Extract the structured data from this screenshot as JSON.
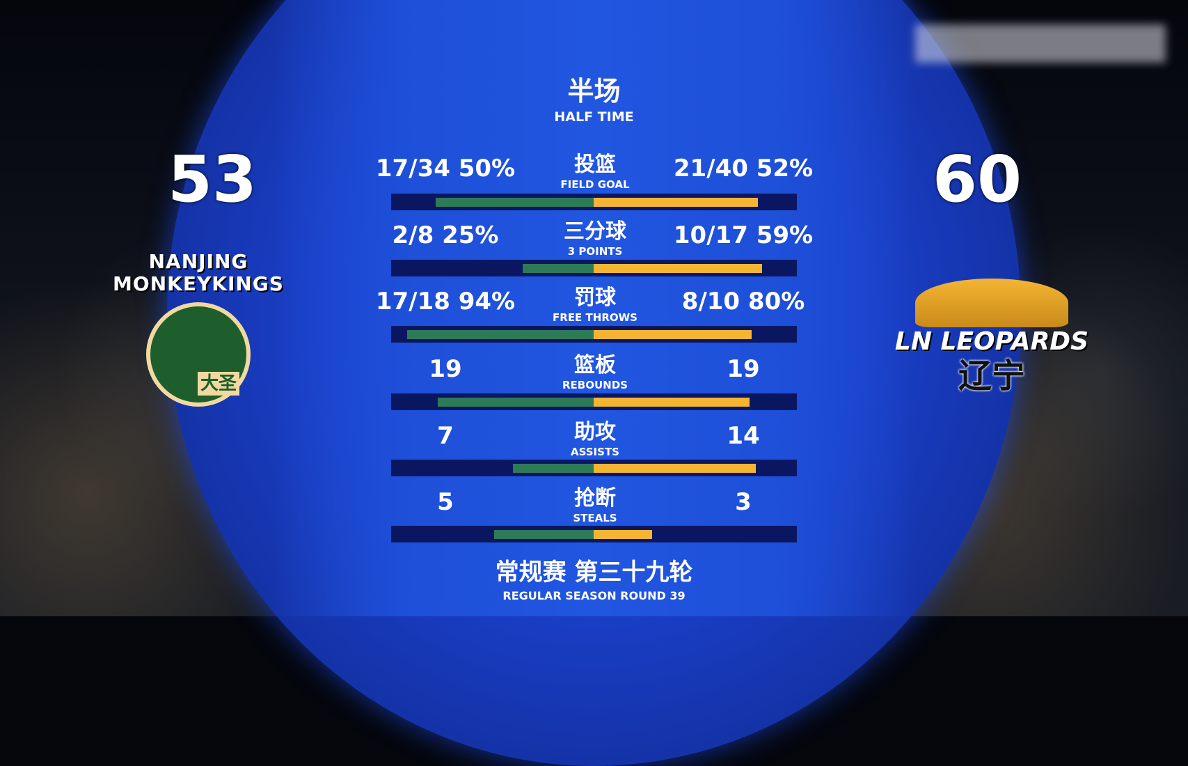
{
  "header": {
    "title_cn": "半场",
    "title_en": "HALF TIME"
  },
  "teams": {
    "home": {
      "score": "53",
      "logo_text": "NANJING MONKEYKINGS",
      "logo_sub": "大圣",
      "color": "#2d7a58"
    },
    "away": {
      "score": "60",
      "logo_text": "LN LEOPARDS",
      "logo_sub": "辽宁",
      "color": "#f4b533"
    }
  },
  "stats": [
    {
      "cn": "投篮",
      "en": "FIELD GOAL",
      "home": "17/34  50%",
      "away": "21/40  52%",
      "home_fill": 0.78,
      "away_fill": 0.81
    },
    {
      "cn": "三分球",
      "en": "3 POINTS",
      "home": "2/8  25%",
      "away": "10/17  59%",
      "home_fill": 0.35,
      "away_fill": 0.83
    },
    {
      "cn": "罚球",
      "en": "FREE THROWS",
      "home": "17/18  94%",
      "away": "8/10  80%",
      "home_fill": 0.92,
      "away_fill": 0.78
    },
    {
      "cn": "篮板",
      "en": "REBOUNDS",
      "home": "19",
      "away": "19",
      "home_fill": 0.77,
      "away_fill": 0.77
    },
    {
      "cn": "助攻",
      "en": "ASSISTS",
      "home": "7",
      "away": "14",
      "home_fill": 0.4,
      "away_fill": 0.8
    },
    {
      "cn": "抢断",
      "en": "STEALS",
      "home": "5",
      "away": "3",
      "home_fill": 0.49,
      "away_fill": 0.29
    }
  ],
  "footer": {
    "cn": "常规赛 第三十九轮",
    "en": "REGULAR SEASON ROUND 39"
  }
}
